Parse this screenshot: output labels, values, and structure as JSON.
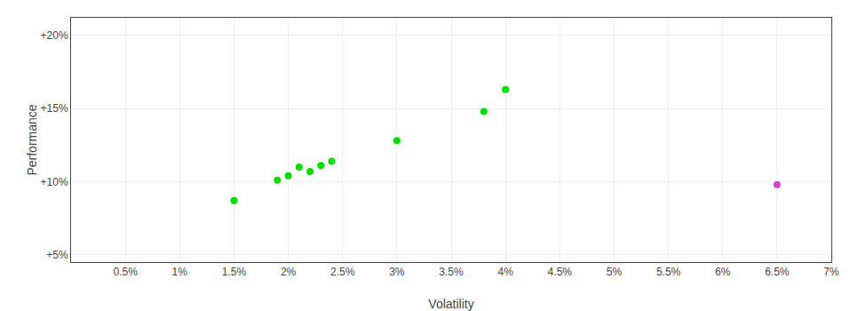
{
  "chart_data": {
    "type": "scatter",
    "xlabel": "Volatility",
    "ylabel": "Performance",
    "xlim": [
      0.0,
      0.07
    ],
    "ylim": [
      0.045,
      0.212
    ],
    "xticks": [
      {
        "value": 0.005,
        "label": "0.5%"
      },
      {
        "value": 0.01,
        "label": "1%"
      },
      {
        "value": 0.015,
        "label": "1.5%"
      },
      {
        "value": 0.02,
        "label": "2%"
      },
      {
        "value": 0.025,
        "label": "2.5%"
      },
      {
        "value": 0.03,
        "label": "3%"
      },
      {
        "value": 0.035,
        "label": "3.5%"
      },
      {
        "value": 0.04,
        "label": "4%"
      },
      {
        "value": 0.045,
        "label": "4.5%"
      },
      {
        "value": 0.05,
        "label": "5%"
      },
      {
        "value": 0.055,
        "label": "5.5%"
      },
      {
        "value": 0.06,
        "label": "6%"
      },
      {
        "value": 0.065,
        "label": "6.5%"
      },
      {
        "value": 0.07,
        "label": "7%"
      }
    ],
    "yticks": [
      {
        "value": 0.05,
        "label": "+5%"
      },
      {
        "value": 0.1,
        "label": "+10%"
      },
      {
        "value": 0.15,
        "label": "+15%"
      },
      {
        "value": 0.2,
        "label": "+20%"
      }
    ],
    "grid": true,
    "series": [
      {
        "color": "#00dd00",
        "x": [
          0.015,
          0.019,
          0.02,
          0.021,
          0.022,
          0.023,
          0.024,
          0.03,
          0.038,
          0.04
        ],
        "values": [
          0.087,
          0.101,
          0.104,
          0.11,
          0.107,
          0.111,
          0.114,
          0.128,
          0.148,
          0.163
        ]
      },
      {
        "color": "#cc44cc",
        "x": [
          0.065
        ],
        "values": [
          0.098
        ]
      }
    ]
  }
}
